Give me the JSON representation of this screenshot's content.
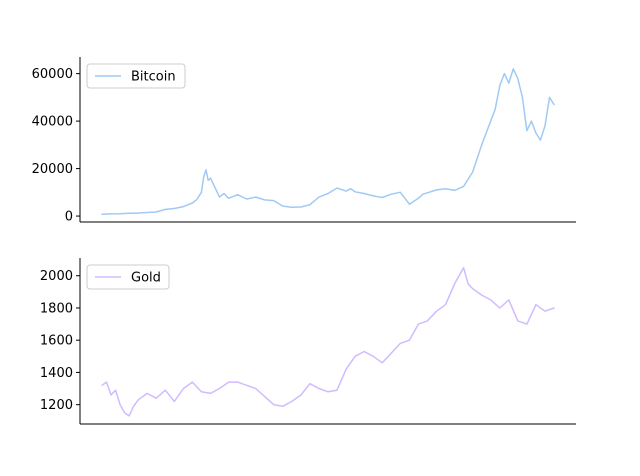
{
  "chart_data": [
    {
      "type": "line",
      "title": "",
      "xlabel": "",
      "ylabel": "",
      "ylim": [
        -2500,
        67000
      ],
      "yticks": [
        0,
        20000,
        40000,
        60000
      ],
      "legend_position": "top-left",
      "grid": false,
      "x_ticks_visible": false,
      "series": [
        {
          "name": "Bitcoin",
          "color": "#a1c9f4",
          "x": [
            0,
            0.02,
            0.04,
            0.06,
            0.08,
            0.1,
            0.12,
            0.14,
            0.16,
            0.18,
            0.2,
            0.21,
            0.22,
            0.225,
            0.23,
            0.235,
            0.24,
            0.25,
            0.26,
            0.27,
            0.28,
            0.3,
            0.32,
            0.34,
            0.36,
            0.38,
            0.4,
            0.42,
            0.44,
            0.46,
            0.48,
            0.5,
            0.52,
            0.54,
            0.55,
            0.56,
            0.58,
            0.6,
            0.62,
            0.64,
            0.66,
            0.68,
            0.7,
            0.71,
            0.72,
            0.74,
            0.76,
            0.78,
            0.8,
            0.82,
            0.84,
            0.86,
            0.87,
            0.88,
            0.89,
            0.9,
            0.91,
            0.92,
            0.93,
            0.94,
            0.95,
            0.96,
            0.97,
            0.98,
            0.99,
            1.0
          ],
          "values": [
            800,
            900,
            1000,
            1200,
            1300,
            1500,
            1700,
            2800,
            3200,
            4000,
            5500,
            7000,
            10000,
            16500,
            19500,
            15000,
            16000,
            12000,
            8000,
            9500,
            7500,
            9000,
            7200,
            8000,
            6800,
            6500,
            4200,
            3700,
            3800,
            4800,
            8000,
            9500,
            11800,
            10500,
            11500,
            10200,
            9500,
            8500,
            7800,
            9200,
            10000,
            5000,
            7500,
            9200,
            9800,
            11000,
            11500,
            10800,
            12500,
            18500,
            30000,
            40000,
            45000,
            55000,
            60000,
            56000,
            62000,
            58000,
            50000,
            36000,
            40000,
            35000,
            32000,
            38000,
            50000,
            47000
          ]
        }
      ]
    },
    {
      "type": "line",
      "title": "",
      "xlabel": "",
      "ylabel": "",
      "ylim": [
        1080,
        2110
      ],
      "yticks": [
        1200,
        1400,
        1600,
        1800,
        2000
      ],
      "legend_position": "top-left",
      "grid": false,
      "x_ticks_visible": false,
      "series": [
        {
          "name": "Gold",
          "color": "#d0bbff",
          "x": [
            0,
            0.01,
            0.02,
            0.03,
            0.04,
            0.05,
            0.06,
            0.07,
            0.08,
            0.1,
            0.12,
            0.14,
            0.16,
            0.18,
            0.2,
            0.22,
            0.24,
            0.26,
            0.28,
            0.3,
            0.32,
            0.34,
            0.36,
            0.38,
            0.4,
            0.42,
            0.44,
            0.46,
            0.48,
            0.5,
            0.52,
            0.54,
            0.56,
            0.58,
            0.6,
            0.62,
            0.64,
            0.66,
            0.68,
            0.7,
            0.72,
            0.74,
            0.76,
            0.78,
            0.8,
            0.81,
            0.82,
            0.84,
            0.86,
            0.88,
            0.9,
            0.92,
            0.94,
            0.96,
            0.98,
            1.0
          ],
          "values": [
            1320,
            1340,
            1260,
            1290,
            1200,
            1150,
            1130,
            1190,
            1230,
            1270,
            1240,
            1290,
            1220,
            1300,
            1340,
            1280,
            1270,
            1300,
            1340,
            1340,
            1320,
            1300,
            1250,
            1200,
            1190,
            1220,
            1260,
            1330,
            1300,
            1280,
            1290,
            1420,
            1500,
            1530,
            1500,
            1460,
            1520,
            1580,
            1600,
            1700,
            1720,
            1780,
            1820,
            1950,
            2050,
            1950,
            1920,
            1880,
            1850,
            1800,
            1850,
            1720,
            1700,
            1820,
            1780,
            1800
          ]
        }
      ]
    }
  ]
}
